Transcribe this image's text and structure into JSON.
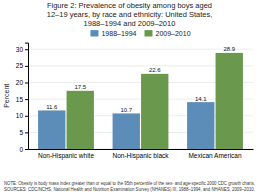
{
  "chart_data": {
    "type": "bar",
    "title": "Figure 2: Prevalence of obesity among boys aged\n12–19 years, by race and ethnicity: United States,\n1988–1994 and 2009–2010",
    "categories": [
      "Non-Hispanic white",
      "Non-Hispanic black",
      "Mexican American"
    ],
    "series": [
      {
        "name": "1988–1994",
        "color": "#5b8db8",
        "values": [
          11.6,
          10.7,
          14.1
        ]
      },
      {
        "name": "2009–2010",
        "color": "#6a994e",
        "values": [
          17.5,
          22.6,
          28.9
        ]
      }
    ],
    "ylabel": "Percent",
    "ylim": [
      0,
      32
    ],
    "yticks": [
      0,
      5,
      10,
      15,
      20,
      25,
      30
    ],
    "grid": true,
    "data_labels": true,
    "legend": "top",
    "note": "NOTE: Obesity is body mass index greater than or equal to the 95th percentile of the sex- and age-specific 2000 CDC growth charts.\nSOURCES: CDC/NCHS, National Health and Nutrition Examination Survey (NHANES) III, 1988–1994, and NHANES, 2009–2010."
  }
}
